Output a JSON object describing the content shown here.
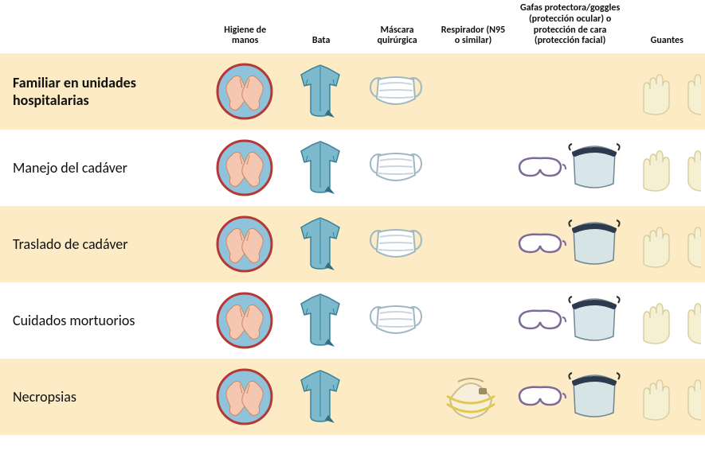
{
  "type": "infographic-table",
  "background_color": "#ffffff",
  "alt_row_color": "#fcebc5",
  "text_color": "#111111",
  "header_fontsize": 12,
  "row_label_fontsize": 18,
  "columns": [
    {
      "key": "higiene",
      "label": "Higiene de manos"
    },
    {
      "key": "bata",
      "label": "Bata"
    },
    {
      "key": "mascara",
      "label": "Máscara quirúrgica"
    },
    {
      "key": "respirador",
      "label": "Respirador (N95 o similar)"
    },
    {
      "key": "gafas",
      "label": "Gafas protectora/goggles (protección ocular) o protección de cara (protección facial)"
    },
    {
      "key": "guantes",
      "label": "Guantes"
    }
  ],
  "rows": [
    {
      "label": "Familiar en unidades hospitalarias",
      "bold": true,
      "cells": {
        "higiene": true,
        "bata": true,
        "mascara": true,
        "respirador": false,
        "gafas": false,
        "guantes": true
      }
    },
    {
      "label": "Manejo del cadáver",
      "bold": false,
      "cells": {
        "higiene": true,
        "bata": true,
        "mascara": true,
        "respirador": false,
        "gafas": true,
        "guantes": true
      }
    },
    {
      "label": "Traslado de cadáver",
      "bold": false,
      "cells": {
        "higiene": true,
        "bata": true,
        "mascara": true,
        "respirador": false,
        "gafas": true,
        "guantes": true
      }
    },
    {
      "label": "Cuidados mortuorios",
      "bold": false,
      "cells": {
        "higiene": true,
        "bata": true,
        "mascara": true,
        "respirador": false,
        "gafas": true,
        "guantes": true
      }
    },
    {
      "label": "Necropsias",
      "bold": false,
      "cells": {
        "higiene": true,
        "bata": true,
        "mascara": false,
        "respirador": true,
        "gafas": true,
        "guantes": true
      }
    }
  ],
  "icons": {
    "higiene": {
      "ring_stroke": "#b53836",
      "ring_fill": "none",
      "bg_fill": "#8fc3db",
      "skin_fill": "#f6c7b0",
      "skin_stroke": "#c98866"
    },
    "bata": {
      "fill": "#7cb9cd",
      "stroke": "#3a8195",
      "fold": "#2d6f83"
    },
    "mascara": {
      "fill": "#ffffff",
      "stroke": "#9fb7c2",
      "band": "#c9d6dd"
    },
    "respirador": {
      "fill": "#f6efdc",
      "stroke": "#c9bd97",
      "strap": "#e3c94a",
      "valve": "#9b8f60"
    },
    "gafas": {
      "goggle_fill": "#ffffff",
      "goggle_stroke": "#7d6a9b",
      "shield_fill": "#d4e4ea",
      "shield_stroke": "#647b86",
      "shield_band": "#2d3a4d"
    },
    "guantes": {
      "fill": "#f6f0d2",
      "stroke": "#d7cfa0"
    }
  }
}
